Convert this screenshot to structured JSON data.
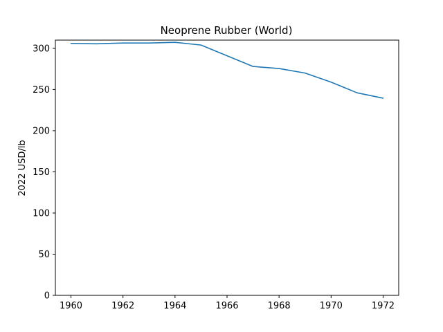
{
  "chart_data": {
    "type": "line",
    "title": "Neoprene Rubber (World)",
    "xlabel": "",
    "ylabel": "2022 USD/lb",
    "xlim": [
      1959.4,
      1972.6
    ],
    "ylim": [
      0,
      310
    ],
    "x_ticks": [
      1960,
      1962,
      1964,
      1966,
      1968,
      1970,
      1972
    ],
    "y_ticks": [
      0,
      50,
      100,
      150,
      200,
      250,
      300
    ],
    "grid": false,
    "series": [
      {
        "name": "Neoprene Rubber (World)",
        "color": "#1f77b4",
        "x": [
          1960,
          1961,
          1962,
          1963,
          1964,
          1965,
          1966,
          1967,
          1968,
          1969,
          1970,
          1971,
          1972
        ],
        "values": [
          306,
          305.5,
          306.5,
          306.5,
          307.3,
          304,
          291,
          278,
          275.5,
          270,
          259,
          246,
          239.5
        ]
      }
    ]
  }
}
